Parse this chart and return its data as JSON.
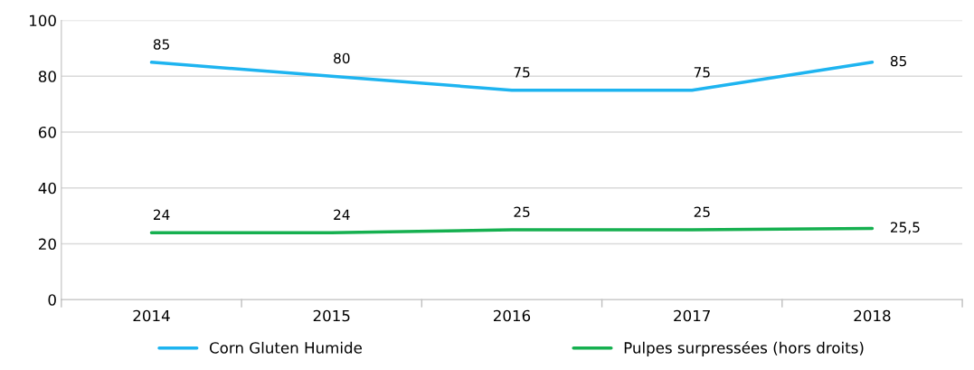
{
  "chart_data": {
    "type": "line",
    "categories": [
      "2014",
      "2015",
      "2016",
      "2017",
      "2018"
    ],
    "series": [
      {
        "name": "Corn Gluten Humide",
        "color": "#1eb4f0",
        "values": [
          85,
          80,
          75,
          75,
          85
        ],
        "value_labels": [
          "85",
          "80",
          "75",
          "75",
          "85"
        ]
      },
      {
        "name": "Pulpes surpressées (hors droits)",
        "color": "#16b050",
        "values": [
          24,
          24,
          25,
          25,
          25.5
        ],
        "value_labels": [
          "24",
          "24",
          "25",
          "25",
          "25,5"
        ]
      }
    ],
    "ylim": [
      0,
      100
    ],
    "yticks": [
      0,
      20,
      40,
      60,
      80,
      100
    ],
    "grid": "y",
    "legend": "bottom",
    "marker": "none",
    "line_style": "solid"
  }
}
